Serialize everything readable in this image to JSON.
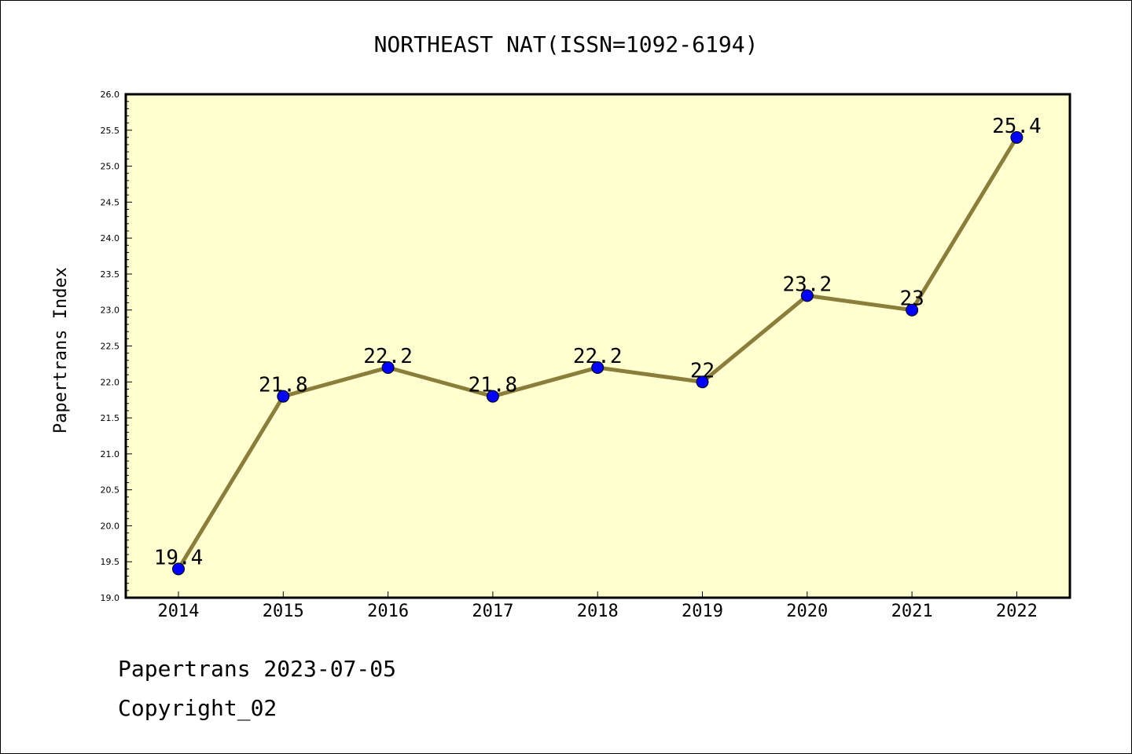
{
  "chart_data": {
    "type": "line",
    "title": "NORTHEAST NAT(ISSN=1092-6194)",
    "xlabel": "",
    "ylabel": "Papertrans Index",
    "categories": [
      "2014",
      "2015",
      "2016",
      "2017",
      "2018",
      "2019",
      "2020",
      "2021",
      "2022"
    ],
    "values": [
      19.4,
      21.8,
      22.2,
      21.8,
      22.2,
      22,
      23.2,
      23,
      25.4
    ],
    "data_labels": [
      "19.4",
      "21.8",
      "22.2",
      "21.8",
      "22.2",
      "22",
      "23.2",
      "23",
      "25.4"
    ],
    "ylim": [
      19.0,
      26.0
    ],
    "yticks": [
      "19.0",
      "19.5",
      "20.0",
      "20.5",
      "21.0",
      "21.5",
      "22.0",
      "22.5",
      "23.0",
      "23.5",
      "24.0",
      "24.5",
      "25.0",
      "25.5",
      "26.0"
    ],
    "grid": false,
    "legend": "none",
    "colors": {
      "plot_background": "#ffffd0",
      "line": "#8b7d3a",
      "marker": "#0000ff"
    }
  },
  "footer": {
    "line1": "Papertrans 2023-07-05",
    "line2": "Copyright_02"
  }
}
